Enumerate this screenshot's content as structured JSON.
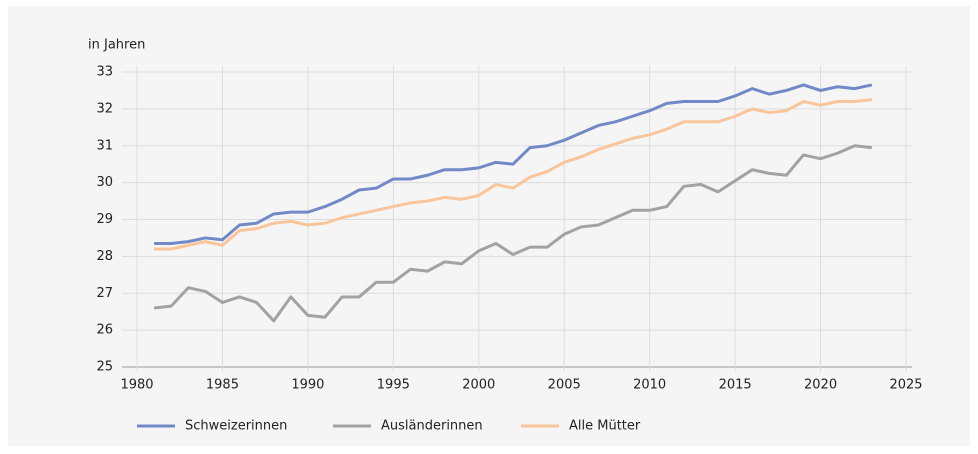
{
  "chart_data": {
    "type": "line",
    "y_label": "in Jahren",
    "x": [
      1981,
      1982,
      1983,
      1984,
      1985,
      1986,
      1987,
      1988,
      1989,
      1990,
      1991,
      1992,
      1993,
      1994,
      1995,
      1996,
      1997,
      1998,
      1999,
      2000,
      2001,
      2002,
      2003,
      2004,
      2005,
      2006,
      2007,
      2008,
      2009,
      2010,
      2011,
      2012,
      2013,
      2014,
      2015,
      2016,
      2017,
      2018,
      2019,
      2020,
      2021,
      2022,
      2023
    ],
    "series": [
      {
        "name": "Schweizerinnen",
        "color": "#7189c6",
        "values": [
          28.35,
          28.35,
          28.4,
          28.5,
          28.45,
          28.85,
          28.9,
          29.15,
          29.2,
          29.2,
          29.35,
          29.55,
          29.8,
          29.85,
          30.1,
          30.1,
          30.2,
          30.35,
          30.35,
          30.4,
          30.55,
          30.5,
          30.95,
          31.0,
          31.15,
          31.35,
          31.55,
          31.65,
          31.8,
          31.95,
          32.15,
          32.2,
          32.2,
          32.2,
          32.35,
          32.55,
          32.4,
          32.5,
          32.65,
          32.5,
          32.6,
          32.55,
          32.65
        ]
      },
      {
        "name": "Ausländerinnen",
        "color": "#a2a2a2",
        "values": [
          26.6,
          26.65,
          27.15,
          27.05,
          26.75,
          26.9,
          26.75,
          26.25,
          26.9,
          26.4,
          26.35,
          26.9,
          26.9,
          27.3,
          27.3,
          27.65,
          27.6,
          27.85,
          27.8,
          28.15,
          28.35,
          28.05,
          28.25,
          28.25,
          28.6,
          28.8,
          28.85,
          29.05,
          29.25,
          29.25,
          29.35,
          29.9,
          29.95,
          29.75,
          30.05,
          30.35,
          30.25,
          30.2,
          30.75,
          30.65,
          30.8,
          31.0,
          30.95
        ]
      },
      {
        "name": "Alle Mütter",
        "color": "#f9c59b",
        "values": [
          28.2,
          28.2,
          28.3,
          28.4,
          28.3,
          28.7,
          28.75,
          28.9,
          28.95,
          28.85,
          28.9,
          29.05,
          29.15,
          29.25,
          29.35,
          29.45,
          29.5,
          29.6,
          29.55,
          29.65,
          29.95,
          29.85,
          30.15,
          30.3,
          30.55,
          30.7,
          30.9,
          31.05,
          31.2,
          31.3,
          31.45,
          31.65,
          31.65,
          31.65,
          31.8,
          32.0,
          31.9,
          31.95,
          32.2,
          32.1,
          32.2,
          32.2,
          32.25
        ]
      }
    ],
    "xlim": [
      1980,
      2025
    ],
    "xticks": [
      1980,
      1985,
      1990,
      1995,
      2000,
      2005,
      2010,
      2015,
      2020,
      2025
    ],
    "ylim": [
      25,
      33
    ],
    "yticks": [
      25,
      26,
      27,
      28,
      29,
      30,
      31,
      32,
      33
    ],
    "grid": true
  }
}
